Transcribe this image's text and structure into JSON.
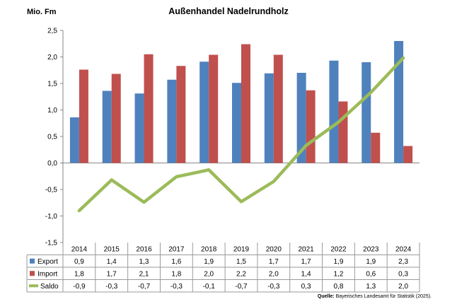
{
  "chart_data": {
    "type": "bar",
    "title": "Außenhandel Nadelrundholz",
    "ylabel": "Mio. Fm",
    "ylim": [
      -1.5,
      2.5
    ],
    "ytick_step": 0.5,
    "yticks": [
      "2,5",
      "2,0",
      "1,5",
      "1,0",
      "0,5",
      "0,0",
      "-0,5",
      "-1,0",
      "-1,5"
    ],
    "categories": [
      "2014",
      "2015",
      "2016",
      "2017",
      "2018",
      "2019",
      "2020",
      "2021",
      "2022",
      "2023",
      "2024"
    ],
    "grid": false,
    "legend": "data-table-left",
    "series": [
      {
        "name": "Export",
        "kind": "bar",
        "color": "#4F81BD",
        "values": [
          0.86,
          1.36,
          1.31,
          1.57,
          1.91,
          1.51,
          1.69,
          1.7,
          1.93,
          1.9,
          2.3
        ],
        "labels": [
          "0,9",
          "1,4",
          "1,3",
          "1,6",
          "1,9",
          "1,5",
          "1,7",
          "1,7",
          "1,9",
          "1,9",
          "2,3"
        ]
      },
      {
        "name": "Import",
        "kind": "bar",
        "color": "#C0504D",
        "values": [
          1.76,
          1.68,
          2.05,
          1.83,
          2.04,
          2.24,
          2.04,
          1.37,
          1.16,
          0.57,
          0.32
        ],
        "labels": [
          "1,8",
          "1,7",
          "2,1",
          "1,8",
          "2,0",
          "2,2",
          "2,0",
          "1,4",
          "1,2",
          "0,6",
          "0,3"
        ]
      },
      {
        "name": "Saldo",
        "kind": "line",
        "color": "#9BBB59",
        "values": [
          -0.9,
          -0.32,
          -0.74,
          -0.26,
          -0.13,
          -0.73,
          -0.35,
          0.33,
          0.77,
          1.33,
          1.98
        ],
        "labels": [
          "-0,9",
          "-0,3",
          "-0,7",
          "-0,3",
          "-0,1",
          "-0,7",
          "-0,3",
          "0,3",
          "0,8",
          "1,3",
          "2,0"
        ]
      }
    ]
  },
  "source": {
    "label": "Quelle:",
    "text": "Bayerisches Landesamt für Statistik (2025)."
  }
}
